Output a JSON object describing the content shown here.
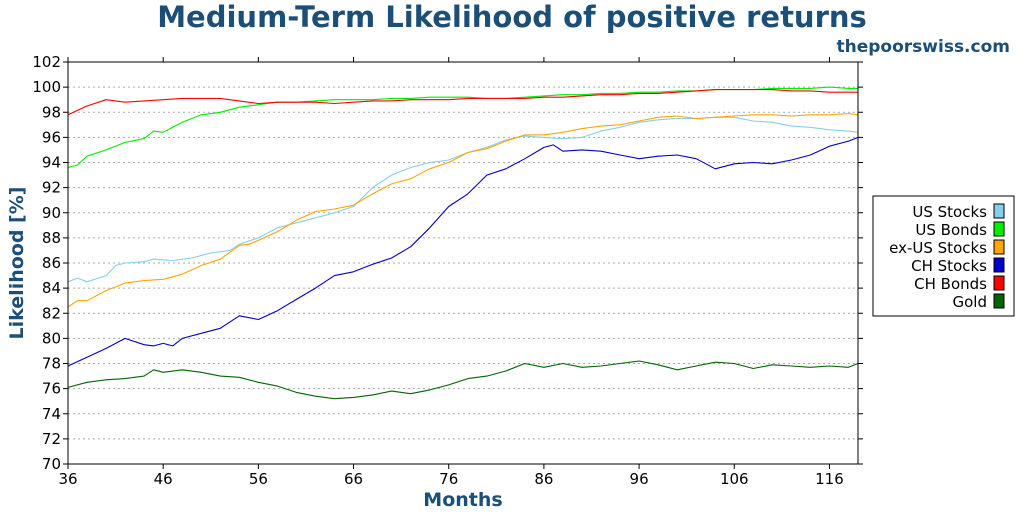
{
  "chart_data": {
    "type": "line",
    "title": "Medium-Term Likelihood of positive returns",
    "subtitle": "thepoorswiss.com",
    "xlabel": "Months",
    "ylabel": "Likelihood [%]",
    "xlim": [
      36,
      119
    ],
    "ylim": [
      70,
      102
    ],
    "xticks": [
      36,
      46,
      56,
      66,
      76,
      86,
      96,
      106,
      116
    ],
    "yticks": [
      70,
      72,
      74,
      76,
      78,
      80,
      82,
      84,
      86,
      88,
      90,
      92,
      94,
      96,
      98,
      100,
      102
    ],
    "grid": "horizontal dotted",
    "legend_position": "right",
    "series": [
      {
        "name": "US Stocks",
        "color": "#87ceeb",
        "points": [
          [
            36,
            84.5
          ],
          [
            37,
            84.8
          ],
          [
            38,
            84.5
          ],
          [
            40,
            85.0
          ],
          [
            41,
            85.8
          ],
          [
            42,
            86.0
          ],
          [
            44,
            86.1
          ],
          [
            45,
            86.3
          ],
          [
            47,
            86.2
          ],
          [
            49,
            86.4
          ],
          [
            51,
            86.8
          ],
          [
            53,
            87.0
          ],
          [
            54,
            87.5
          ],
          [
            56,
            88.0
          ],
          [
            58,
            88.8
          ],
          [
            60,
            89.2
          ],
          [
            62,
            89.6
          ],
          [
            64,
            90.0
          ],
          [
            66,
            90.5
          ],
          [
            68,
            92.0
          ],
          [
            70,
            93.0
          ],
          [
            72,
            93.6
          ],
          [
            74,
            94.0
          ],
          [
            76,
            94.2
          ],
          [
            78,
            94.8
          ],
          [
            80,
            95.2
          ],
          [
            82,
            95.8
          ],
          [
            84,
            96.1
          ],
          [
            86,
            96.0
          ],
          [
            88,
            95.9
          ],
          [
            90,
            96.0
          ],
          [
            92,
            96.5
          ],
          [
            94,
            96.8
          ],
          [
            96,
            97.2
          ],
          [
            98,
            97.4
          ],
          [
            100,
            97.5
          ],
          [
            102,
            97.5
          ],
          [
            104,
            97.6
          ],
          [
            106,
            97.6
          ],
          [
            108,
            97.3
          ],
          [
            110,
            97.2
          ],
          [
            112,
            96.9
          ],
          [
            114,
            96.8
          ],
          [
            116,
            96.6
          ],
          [
            118,
            96.5
          ],
          [
            119,
            96.4
          ]
        ]
      },
      {
        "name": "US Bonds",
        "color": "#00ee00",
        "points": [
          [
            36,
            93.6
          ],
          [
            37,
            93.8
          ],
          [
            38,
            94.5
          ],
          [
            40,
            95.0
          ],
          [
            42,
            95.6
          ],
          [
            44,
            95.9
          ],
          [
            45,
            96.5
          ],
          [
            46,
            96.4
          ],
          [
            48,
            97.2
          ],
          [
            50,
            97.8
          ],
          [
            52,
            98.0
          ],
          [
            54,
            98.4
          ],
          [
            56,
            98.6
          ],
          [
            58,
            98.8
          ],
          [
            60,
            98.8
          ],
          [
            62,
            98.9
          ],
          [
            64,
            99.0
          ],
          [
            66,
            99.0
          ],
          [
            68,
            99.0
          ],
          [
            70,
            99.1
          ],
          [
            72,
            99.1
          ],
          [
            74,
            99.2
          ],
          [
            76,
            99.2
          ],
          [
            78,
            99.2
          ],
          [
            80,
            99.1
          ],
          [
            82,
            99.1
          ],
          [
            84,
            99.2
          ],
          [
            86,
            99.3
          ],
          [
            88,
            99.4
          ],
          [
            90,
            99.4
          ],
          [
            92,
            99.5
          ],
          [
            94,
            99.5
          ],
          [
            96,
            99.6
          ],
          [
            98,
            99.6
          ],
          [
            100,
            99.7
          ],
          [
            102,
            99.7
          ],
          [
            104,
            99.8
          ],
          [
            106,
            99.8
          ],
          [
            108,
            99.8
          ],
          [
            110,
            99.9
          ],
          [
            112,
            99.9
          ],
          [
            114,
            99.9
          ],
          [
            116,
            100.0
          ],
          [
            118,
            99.9
          ],
          [
            119,
            99.9
          ]
        ]
      },
      {
        "name": "ex-US Stocks",
        "color": "#ffa500",
        "points": [
          [
            36,
            82.5
          ],
          [
            37,
            83.0
          ],
          [
            38,
            83.0
          ],
          [
            40,
            83.8
          ],
          [
            42,
            84.4
          ],
          [
            44,
            84.6
          ],
          [
            46,
            84.7
          ],
          [
            48,
            85.1
          ],
          [
            50,
            85.8
          ],
          [
            52,
            86.3
          ],
          [
            54,
            87.4
          ],
          [
            55,
            87.5
          ],
          [
            56,
            87.8
          ],
          [
            58,
            88.5
          ],
          [
            60,
            89.4
          ],
          [
            62,
            90.1
          ],
          [
            64,
            90.3
          ],
          [
            66,
            90.6
          ],
          [
            68,
            91.5
          ],
          [
            70,
            92.3
          ],
          [
            72,
            92.7
          ],
          [
            74,
            93.5
          ],
          [
            76,
            94.0
          ],
          [
            78,
            94.8
          ],
          [
            80,
            95.1
          ],
          [
            82,
            95.7
          ],
          [
            84,
            96.2
          ],
          [
            86,
            96.2
          ],
          [
            88,
            96.4
          ],
          [
            90,
            96.7
          ],
          [
            92,
            96.9
          ],
          [
            94,
            97.0
          ],
          [
            96,
            97.3
          ],
          [
            98,
            97.6
          ],
          [
            100,
            97.7
          ],
          [
            102,
            97.5
          ],
          [
            104,
            97.6
          ],
          [
            106,
            97.7
          ],
          [
            108,
            97.8
          ],
          [
            110,
            97.8
          ],
          [
            112,
            97.7
          ],
          [
            114,
            97.8
          ],
          [
            116,
            97.8
          ],
          [
            118,
            97.9
          ],
          [
            119,
            97.8
          ]
        ]
      },
      {
        "name": "CH Stocks",
        "color": "#0000cd",
        "points": [
          [
            36,
            77.8
          ],
          [
            38,
            78.5
          ],
          [
            40,
            79.2
          ],
          [
            42,
            80.0
          ],
          [
            44,
            79.5
          ],
          [
            45,
            79.4
          ],
          [
            46,
            79.6
          ],
          [
            47,
            79.4
          ],
          [
            48,
            80.0
          ],
          [
            50,
            80.4
          ],
          [
            52,
            80.8
          ],
          [
            54,
            81.8
          ],
          [
            56,
            81.5
          ],
          [
            58,
            82.2
          ],
          [
            60,
            83.1
          ],
          [
            62,
            84.0
          ],
          [
            64,
            85.0
          ],
          [
            66,
            85.3
          ],
          [
            68,
            85.9
          ],
          [
            70,
            86.4
          ],
          [
            72,
            87.3
          ],
          [
            74,
            88.8
          ],
          [
            76,
            90.5
          ],
          [
            78,
            91.5
          ],
          [
            80,
            93.0
          ],
          [
            82,
            93.5
          ],
          [
            84,
            94.3
          ],
          [
            86,
            95.2
          ],
          [
            87,
            95.4
          ],
          [
            88,
            94.9
          ],
          [
            90,
            95.0
          ],
          [
            92,
            94.9
          ],
          [
            94,
            94.6
          ],
          [
            96,
            94.3
          ],
          [
            98,
            94.5
          ],
          [
            100,
            94.6
          ],
          [
            102,
            94.3
          ],
          [
            104,
            93.5
          ],
          [
            106,
            93.9
          ],
          [
            108,
            94.0
          ],
          [
            110,
            93.9
          ],
          [
            112,
            94.2
          ],
          [
            114,
            94.6
          ],
          [
            116,
            95.3
          ],
          [
            118,
            95.7
          ],
          [
            119,
            96.0
          ]
        ]
      },
      {
        "name": "CH Bonds",
        "color": "#ff0000",
        "points": [
          [
            36,
            97.8
          ],
          [
            38,
            98.5
          ],
          [
            40,
            99.0
          ],
          [
            42,
            98.8
          ],
          [
            44,
            98.9
          ],
          [
            46,
            99.0
          ],
          [
            48,
            99.1
          ],
          [
            50,
            99.1
          ],
          [
            52,
            99.1
          ],
          [
            54,
            98.9
          ],
          [
            56,
            98.7
          ],
          [
            58,
            98.8
          ],
          [
            60,
            98.8
          ],
          [
            62,
            98.8
          ],
          [
            64,
            98.7
          ],
          [
            66,
            98.8
          ],
          [
            68,
            98.9
          ],
          [
            70,
            98.9
          ],
          [
            72,
            99.0
          ],
          [
            74,
            99.0
          ],
          [
            76,
            99.0
          ],
          [
            78,
            99.1
          ],
          [
            80,
            99.1
          ],
          [
            82,
            99.1
          ],
          [
            84,
            99.1
          ],
          [
            86,
            99.2
          ],
          [
            88,
            99.2
          ],
          [
            90,
            99.3
          ],
          [
            92,
            99.4
          ],
          [
            94,
            99.4
          ],
          [
            96,
            99.5
          ],
          [
            98,
            99.5
          ],
          [
            100,
            99.6
          ],
          [
            102,
            99.7
          ],
          [
            104,
            99.8
          ],
          [
            106,
            99.8
          ],
          [
            108,
            99.8
          ],
          [
            110,
            99.8
          ],
          [
            112,
            99.7
          ],
          [
            114,
            99.7
          ],
          [
            116,
            99.6
          ],
          [
            118,
            99.6
          ],
          [
            119,
            99.6
          ]
        ]
      },
      {
        "name": "Gold",
        "color": "#006400",
        "points": [
          [
            36,
            76.1
          ],
          [
            38,
            76.5
          ],
          [
            40,
            76.7
          ],
          [
            42,
            76.8
          ],
          [
            44,
            77.0
          ],
          [
            45,
            77.5
          ],
          [
            46,
            77.3
          ],
          [
            48,
            77.5
          ],
          [
            50,
            77.3
          ],
          [
            52,
            77.0
          ],
          [
            54,
            76.9
          ],
          [
            56,
            76.5
          ],
          [
            58,
            76.2
          ],
          [
            60,
            75.7
          ],
          [
            62,
            75.4
          ],
          [
            64,
            75.2
          ],
          [
            66,
            75.3
          ],
          [
            68,
            75.5
          ],
          [
            70,
            75.8
          ],
          [
            72,
            75.6
          ],
          [
            74,
            75.9
          ],
          [
            76,
            76.3
          ],
          [
            78,
            76.8
          ],
          [
            80,
            77.0
          ],
          [
            82,
            77.4
          ],
          [
            84,
            78.0
          ],
          [
            86,
            77.7
          ],
          [
            88,
            78.0
          ],
          [
            90,
            77.7
          ],
          [
            92,
            77.8
          ],
          [
            94,
            78.0
          ],
          [
            96,
            78.2
          ],
          [
            98,
            77.9
          ],
          [
            100,
            77.5
          ],
          [
            102,
            77.8
          ],
          [
            104,
            78.1
          ],
          [
            106,
            78.0
          ],
          [
            108,
            77.6
          ],
          [
            110,
            77.9
          ],
          [
            112,
            77.8
          ],
          [
            114,
            77.7
          ],
          [
            116,
            77.8
          ],
          [
            118,
            77.7
          ],
          [
            119,
            78.0
          ]
        ]
      }
    ]
  }
}
